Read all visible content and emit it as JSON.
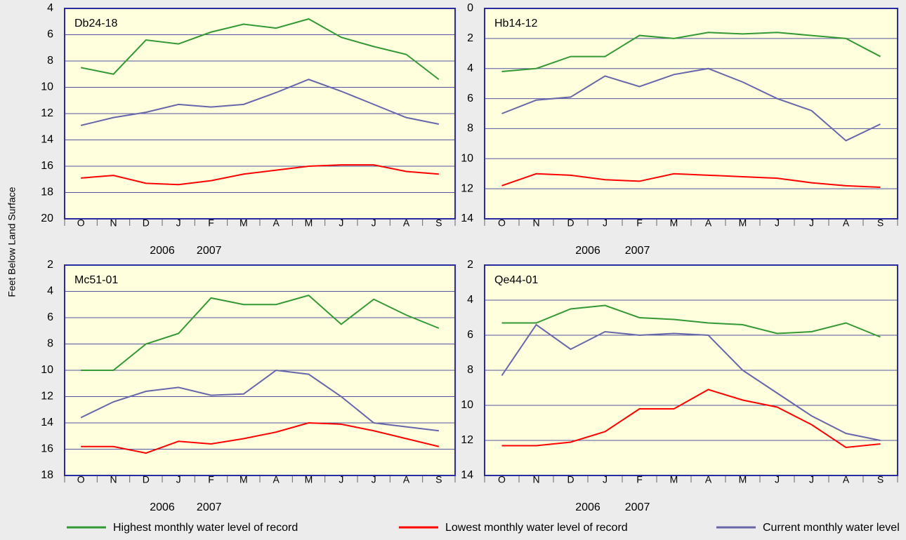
{
  "chart_data": [
    {
      "type": "line",
      "title": "Db24-18",
      "ylabel": "Feet Below Land Surface",
      "years": [
        "2006",
        "2007"
      ],
      "categories": [
        "O",
        "N",
        "D",
        "J",
        "F",
        "M",
        "A",
        "M",
        "J",
        "J",
        "A",
        "S"
      ],
      "ylim": [
        4,
        20
      ],
      "y_inverted": true,
      "yticks": [
        4,
        6,
        8,
        10,
        12,
        14,
        16,
        18,
        20
      ],
      "grid": true,
      "series": [
        {
          "name": "Highest monthly water level of record",
          "color": "#339933",
          "values": [
            8.5,
            9.0,
            6.4,
            6.7,
            5.8,
            5.2,
            5.5,
            4.8,
            6.2,
            6.9,
            7.5,
            9.4
          ]
        },
        {
          "name": "Lowest monthly water level of record",
          "color": "#ff0000",
          "values": [
            16.9,
            16.7,
            17.3,
            17.4,
            17.1,
            16.6,
            16.3,
            16.0,
            15.9,
            15.9,
            16.4,
            16.6
          ]
        },
        {
          "name": "Current monthly water level",
          "color": "#6666aa",
          "values": [
            12.9,
            12.3,
            11.9,
            11.3,
            11.5,
            11.3,
            10.4,
            9.4,
            10.3,
            11.3,
            12.3,
            12.8
          ]
        }
      ]
    },
    {
      "type": "line",
      "title": "Hb14-12",
      "years": [
        "2006",
        "2007"
      ],
      "categories": [
        "O",
        "N",
        "D",
        "J",
        "F",
        "M",
        "A",
        "M",
        "J",
        "J",
        "A",
        "S"
      ],
      "ylim": [
        0,
        14
      ],
      "y_inverted": true,
      "yticks": [
        0,
        2,
        4,
        6,
        8,
        10,
        12,
        14
      ],
      "grid": true,
      "series": [
        {
          "color": "#339933",
          "values": [
            4.2,
            4.0,
            3.2,
            3.2,
            1.8,
            2.0,
            1.6,
            1.7,
            1.6,
            1.8,
            2.0,
            3.2
          ]
        },
        {
          "color": "#ff0000",
          "values": [
            11.8,
            11.0,
            11.1,
            11.4,
            11.5,
            11.0,
            11.1,
            11.2,
            11.3,
            11.6,
            11.8,
            11.9
          ]
        },
        {
          "color": "#6666aa",
          "values": [
            7.0,
            6.1,
            5.9,
            4.5,
            5.2,
            4.4,
            4.0,
            4.9,
            6.0,
            6.8,
            8.8,
            7.7
          ]
        }
      ]
    },
    {
      "type": "line",
      "title": "Mc51-01",
      "years": [
        "2006",
        "2007"
      ],
      "categories": [
        "O",
        "N",
        "D",
        "J",
        "F",
        "M",
        "A",
        "M",
        "J",
        "J",
        "A",
        "S"
      ],
      "ylim": [
        2,
        18
      ],
      "y_inverted": true,
      "yticks": [
        2,
        4,
        6,
        8,
        10,
        12,
        14,
        16,
        18
      ],
      "grid": true,
      "series": [
        {
          "color": "#339933",
          "values": [
            10.0,
            10.0,
            8.0,
            7.2,
            4.5,
            5.0,
            5.0,
            4.3,
            6.5,
            4.6,
            5.8,
            6.8
          ]
        },
        {
          "color": "#ff0000",
          "values": [
            15.8,
            15.8,
            16.3,
            15.4,
            15.6,
            15.2,
            14.7,
            14.0,
            14.1,
            14.6,
            15.2,
            15.8
          ]
        },
        {
          "color": "#6666aa",
          "values": [
            13.6,
            12.4,
            11.6,
            11.3,
            11.9,
            11.8,
            10.0,
            10.3,
            12.0,
            14.0,
            14.3,
            14.6
          ]
        }
      ]
    },
    {
      "type": "line",
      "title": "Qe44-01",
      "years": [
        "2006",
        "2007"
      ],
      "categories": [
        "O",
        "N",
        "D",
        "J",
        "F",
        "M",
        "A",
        "M",
        "J",
        "J",
        "A",
        "S"
      ],
      "ylim": [
        2,
        14
      ],
      "y_inverted": true,
      "yticks": [
        2,
        4,
        6,
        8,
        10,
        12,
        14
      ],
      "grid": true,
      "series": [
        {
          "color": "#339933",
          "values": [
            5.3,
            5.3,
            4.5,
            4.3,
            5.0,
            5.1,
            5.3,
            5.4,
            5.9,
            5.8,
            5.3,
            6.1
          ]
        },
        {
          "color": "#ff0000",
          "values": [
            12.3,
            12.3,
            12.1,
            11.5,
            10.2,
            10.2,
            9.1,
            9.7,
            10.1,
            11.1,
            12.4,
            12.2
          ]
        },
        {
          "color": "#6666aa",
          "values": [
            8.3,
            5.4,
            6.8,
            5.8,
            6.0,
            5.9,
            6.0,
            8.0,
            9.3,
            10.6,
            11.6,
            12.0
          ]
        }
      ]
    }
  ]
}
